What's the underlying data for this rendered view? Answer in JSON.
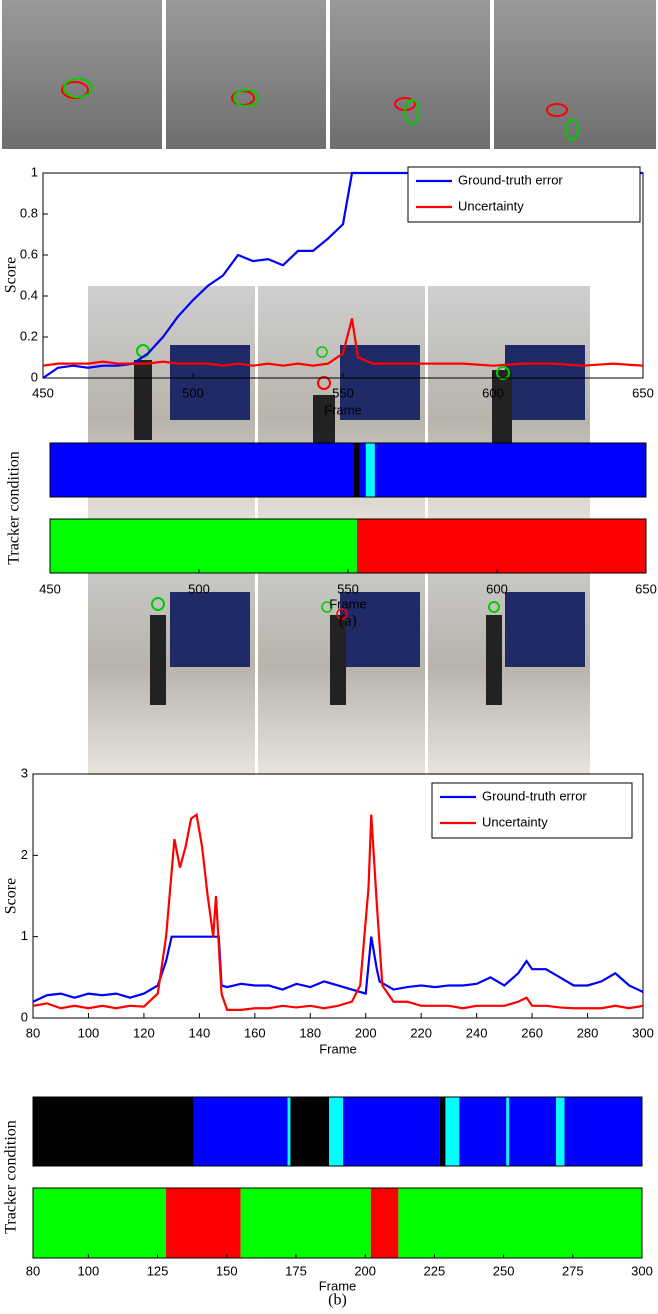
{
  "chart_data": [
    {
      "type": "line",
      "xlabel": "Frame",
      "ylabel": "Score",
      "xlim": [
        450,
        650
      ],
      "ylim": [
        0,
        1
      ],
      "xticks": [
        450,
        500,
        550,
        600,
        650
      ],
      "yticks": [
        0,
        0.2,
        0.4,
        0.6,
        0.8,
        1
      ],
      "legend": "upper right",
      "series": [
        {
          "name": "Ground-truth error",
          "color": "#0000ff",
          "x": [
            450,
            455,
            460,
            465,
            470,
            475,
            480,
            485,
            490,
            495,
            500,
            505,
            510,
            515,
            520,
            525,
            530,
            535,
            540,
            545,
            550,
            553,
            555,
            560,
            570,
            580,
            590,
            600,
            610,
            620,
            630,
            640,
            650
          ],
          "values": [
            0,
            0.05,
            0.06,
            0.05,
            0.06,
            0.06,
            0.07,
            0.12,
            0.2,
            0.3,
            0.38,
            0.45,
            0.5,
            0.6,
            0.57,
            0.58,
            0.55,
            0.62,
            0.62,
            0.68,
            0.75,
            1,
            1,
            1,
            1,
            1,
            1,
            1,
            1,
            1,
            1,
            1,
            1
          ]
        },
        {
          "name": "Uncertainty",
          "color": "#ff0000",
          "x": [
            450,
            455,
            460,
            465,
            470,
            475,
            480,
            485,
            490,
            495,
            500,
            505,
            510,
            515,
            520,
            525,
            530,
            535,
            540,
            545,
            550,
            553,
            555,
            560,
            570,
            580,
            590,
            600,
            610,
            620,
            630,
            640,
            650
          ],
          "values": [
            0.06,
            0.07,
            0.07,
            0.07,
            0.08,
            0.07,
            0.07,
            0.07,
            0.08,
            0.07,
            0.07,
            0.07,
            0.06,
            0.07,
            0.06,
            0.07,
            0.06,
            0.07,
            0.06,
            0.07,
            0.12,
            0.29,
            0.1,
            0.07,
            0.07,
            0.07,
            0.07,
            0.06,
            0.07,
            0.07,
            0.06,
            0.07,
            0.06
          ]
        }
      ]
    },
    {
      "type": "segments",
      "xlabel": "Frame",
      "ylabel": "Tracker condition",
      "caption": "(a)",
      "xlim": [
        450,
        650
      ],
      "xticks": [
        450,
        500,
        550,
        600,
        650
      ],
      "rows": [
        [
          {
            "start": 450,
            "end": 552,
            "color": "#0000ff"
          },
          {
            "start": 552,
            "end": 554,
            "color": "#000000"
          },
          {
            "start": 554,
            "end": 556,
            "color": "#0000ff"
          },
          {
            "start": 556,
            "end": 559,
            "color": "#00ffff"
          },
          {
            "start": 559,
            "end": 650,
            "color": "#0000ff"
          }
        ],
        [
          {
            "start": 450,
            "end": 553,
            "color": "#00ff00"
          },
          {
            "start": 553,
            "end": 650,
            "color": "#ff0000"
          }
        ]
      ]
    },
    {
      "type": "line",
      "xlabel": "Frame",
      "ylabel": "Score",
      "xlim": [
        80,
        300
      ],
      "ylim": [
        0,
        3
      ],
      "xticks": [
        80,
        100,
        120,
        140,
        160,
        180,
        200,
        220,
        240,
        260,
        280,
        300
      ],
      "yticks": [
        0,
        1,
        2,
        3
      ],
      "legend": "upper right",
      "series": [
        {
          "name": "Ground-truth error",
          "color": "#0000ff",
          "x": [
            80,
            85,
            90,
            95,
            100,
            105,
            110,
            115,
            120,
            125,
            128,
            130,
            135,
            140,
            145,
            147,
            148,
            150,
            155,
            160,
            165,
            170,
            175,
            180,
            185,
            190,
            195,
            200,
            202,
            204,
            205,
            210,
            215,
            220,
            225,
            230,
            235,
            240,
            245,
            250,
            255,
            258,
            260,
            265,
            270,
            275,
            280,
            285,
            290,
            295,
            300
          ],
          "values": [
            0.2,
            0.28,
            0.3,
            0.25,
            0.3,
            0.28,
            0.3,
            0.25,
            0.3,
            0.4,
            0.7,
            1,
            1,
            1,
            1,
            1,
            0.4,
            0.38,
            0.42,
            0.4,
            0.4,
            0.35,
            0.42,
            0.38,
            0.45,
            0.4,
            0.35,
            0.3,
            1,
            0.6,
            0.45,
            0.35,
            0.38,
            0.4,
            0.38,
            0.4,
            0.4,
            0.42,
            0.5,
            0.4,
            0.55,
            0.7,
            0.6,
            0.6,
            0.5,
            0.4,
            0.4,
            0.45,
            0.55,
            0.4,
            0.32
          ]
        },
        {
          "name": "Uncertainty",
          "color": "#ff0000",
          "x": [
            80,
            85,
            90,
            95,
            100,
            105,
            110,
            115,
            120,
            125,
            128,
            131,
            133,
            135,
            137,
            139,
            141,
            143,
            145,
            146,
            147,
            148,
            150,
            155,
            160,
            165,
            170,
            175,
            180,
            185,
            190,
            195,
            198,
            201,
            202,
            204,
            206,
            210,
            215,
            220,
            225,
            230,
            235,
            240,
            245,
            250,
            255,
            258,
            260,
            265,
            270,
            275,
            280,
            285,
            290,
            295,
            300
          ],
          "values": [
            0.15,
            0.18,
            0.12,
            0.15,
            0.12,
            0.15,
            0.12,
            0.15,
            0.14,
            0.3,
            1,
            2.2,
            1.85,
            2.1,
            2.45,
            2.5,
            2.1,
            1.5,
            1,
            1.5,
            0.9,
            0.3,
            0.1,
            0.1,
            0.12,
            0.12,
            0.15,
            0.13,
            0.15,
            0.12,
            0.15,
            0.2,
            0.4,
            1.6,
            2.5,
            1.4,
            0.4,
            0.2,
            0.2,
            0.15,
            0.15,
            0.15,
            0.12,
            0.15,
            0.15,
            0.15,
            0.2,
            0.25,
            0.15,
            0.15,
            0.13,
            0.12,
            0.12,
            0.12,
            0.15,
            0.12,
            0.15
          ]
        }
      ]
    },
    {
      "type": "segments",
      "xlabel": "Frame",
      "ylabel": "Tracker condition",
      "caption": "(b)",
      "xlim": [
        80,
        300
      ],
      "xticks": [
        80,
        100,
        125,
        150,
        175,
        200,
        225,
        250,
        275,
        300
      ],
      "rows": [
        [
          {
            "start": 80,
            "end": 138,
            "color": "#000000"
          },
          {
            "start": 138,
            "end": 172,
            "color": "#0000ff"
          },
          {
            "start": 172,
            "end": 173,
            "color": "#00ffff"
          },
          {
            "start": 173,
            "end": 187,
            "color": "#000000"
          },
          {
            "start": 187,
            "end": 192,
            "color": "#00ffff"
          },
          {
            "start": 192,
            "end": 227,
            "color": "#0000ff"
          },
          {
            "start": 227,
            "end": 229,
            "color": "#000000"
          },
          {
            "start": 229,
            "end": 234,
            "color": "#00ffff"
          },
          {
            "start": 234,
            "end": 251,
            "color": "#0000ff"
          },
          {
            "start": 251,
            "end": 252,
            "color": "#00ffff"
          },
          {
            "start": 252,
            "end": 269,
            "color": "#0000ff"
          },
          {
            "start": 269,
            "end": 272,
            "color": "#00ffff"
          },
          {
            "start": 272,
            "end": 300,
            "color": "#0000ff"
          }
        ],
        [
          {
            "start": 80,
            "end": 128,
            "color": "#00ff00"
          },
          {
            "start": 128,
            "end": 155,
            "color": "#ff0000"
          },
          {
            "start": 155,
            "end": 202,
            "color": "#00ff00"
          },
          {
            "start": 202,
            "end": 212,
            "color": "#ff0000"
          },
          {
            "start": 212,
            "end": 300,
            "color": "#00ff00"
          }
        ]
      ]
    }
  ]
}
